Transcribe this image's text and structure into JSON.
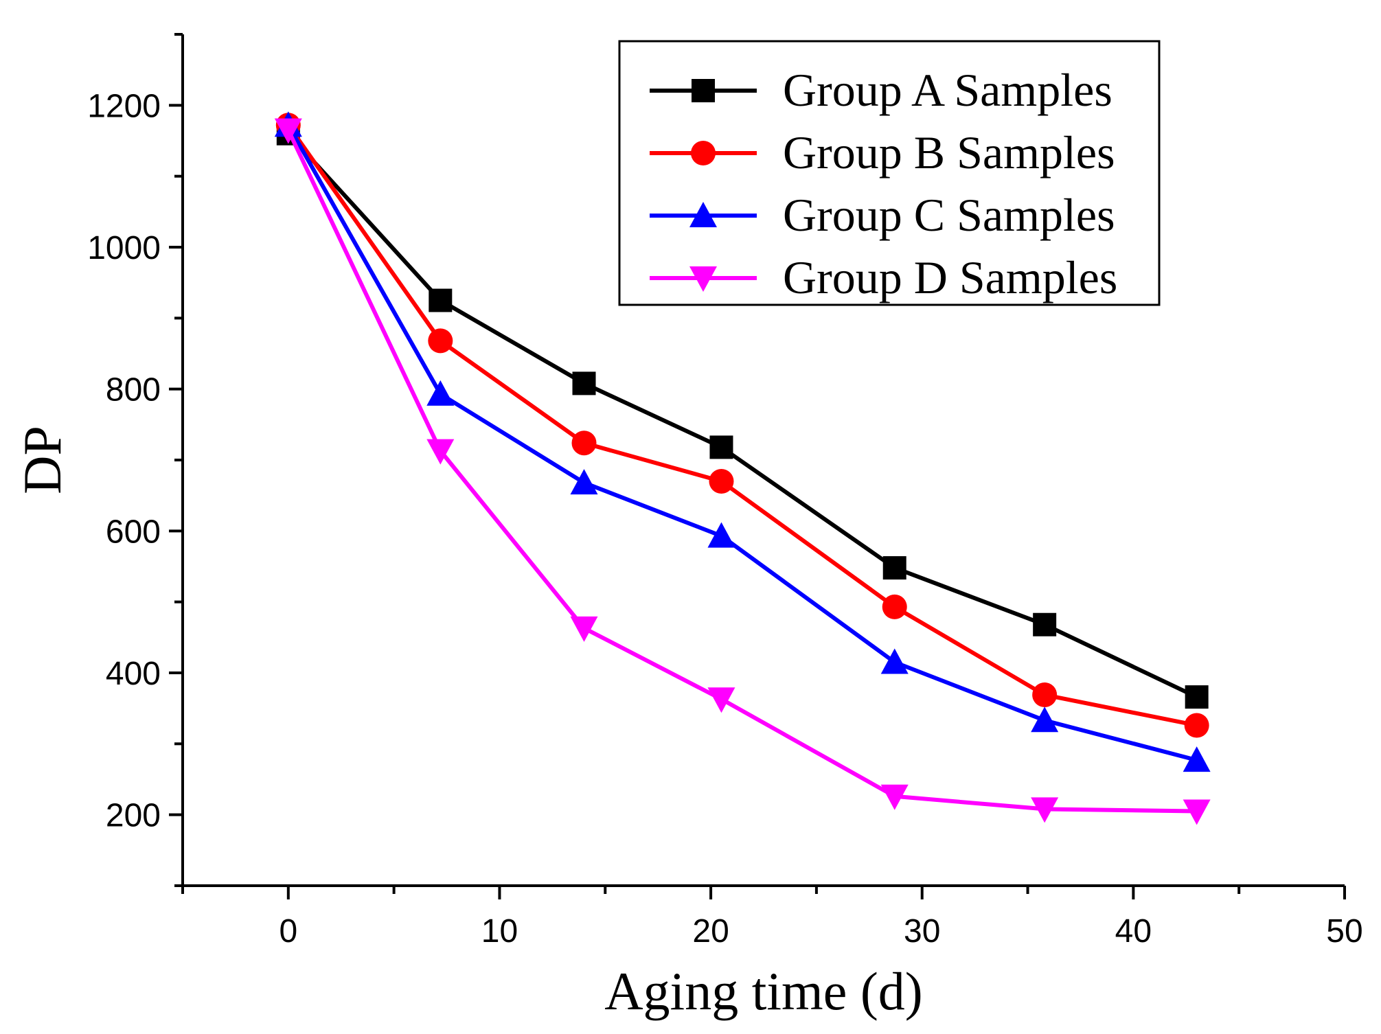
{
  "chart_data": {
    "type": "line",
    "title": "",
    "xlabel": "Aging time (d)",
    "ylabel": "DP",
    "xlim": [
      -5,
      50
    ],
    "ylim": [
      100,
      1300
    ],
    "xticks": [
      0,
      10,
      20,
      30,
      40,
      50
    ],
    "yticks": [
      200,
      400,
      600,
      800,
      1000,
      1200
    ],
    "grid": false,
    "legend_position": "top-right",
    "x": [
      0,
      7.2,
      14,
      20.5,
      28.7,
      35.8,
      43
    ],
    "series": [
      {
        "name": "Group A Samples",
        "color": "#000000",
        "marker": "square",
        "values": [
          1160,
          925,
          808,
          718,
          548,
          468,
          366
        ]
      },
      {
        "name": "Group B Samples",
        "color": "#ff0000",
        "marker": "circle",
        "values": [
          1172,
          868,
          724,
          670,
          493,
          369,
          326
        ]
      },
      {
        "name": "Group C Samples",
        "color": "#0000ff",
        "marker": "triangle-up",
        "values": [
          1172,
          793,
          668,
          593,
          415,
          333,
          277
        ]
      },
      {
        "name": "Group D Samples",
        "color": "#ff00ff",
        "marker": "triangle-down",
        "values": [
          1165,
          713,
          463,
          363,
          226,
          208,
          205
        ]
      }
    ]
  }
}
